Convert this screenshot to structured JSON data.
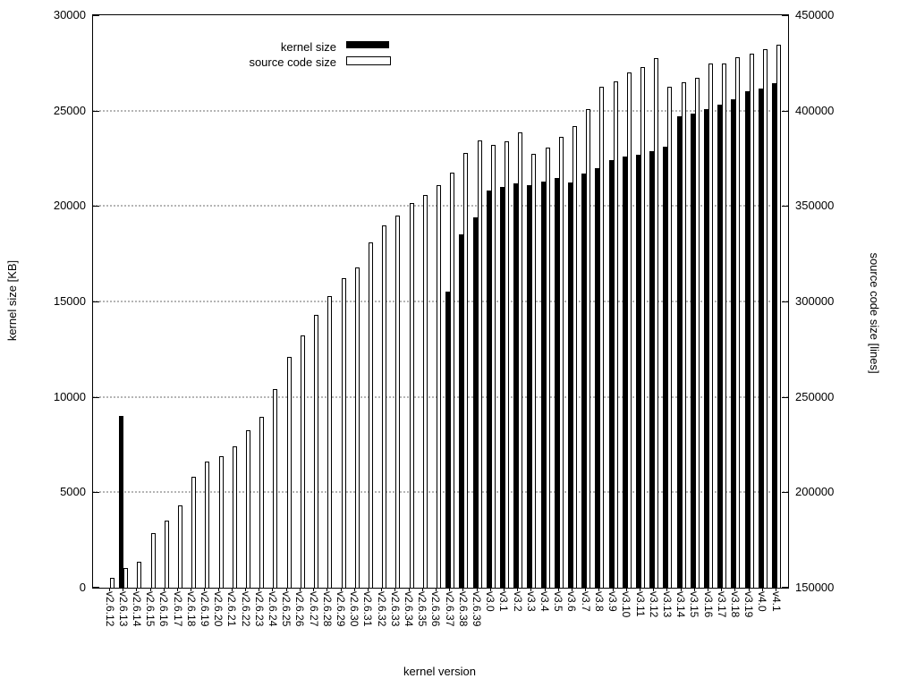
{
  "chart_data": {
    "type": "bar",
    "title": "",
    "xlabel": "kernel version",
    "ylabel_left": "kernel size [KB]",
    "ylabel_right": "source code size [lines]",
    "grid": "horizontal dotted",
    "legend_position": "top-left-inside",
    "legend": [
      {
        "label": "kernel size",
        "style": "filled-black"
      },
      {
        "label": "source code size",
        "style": "white-outline"
      }
    ],
    "left_axis": {
      "min": 0,
      "max": 30000,
      "ticks": [
        0,
        5000,
        10000,
        15000,
        20000,
        25000,
        30000
      ]
    },
    "right_axis": {
      "min": 150000,
      "max": 450000,
      "ticks": [
        150000,
        200000,
        250000,
        300000,
        350000,
        400000,
        450000
      ]
    },
    "categories": [
      "v2.6.12",
      "v2.6.13",
      "v2.6.14",
      "v2.6.15",
      "v2.6.16",
      "v2.6.17",
      "v2.6.18",
      "v2.6.19",
      "v2.6.20",
      "v2.6.21",
      "v2.6.22",
      "v2.6.23",
      "v2.6.24",
      "v2.6.25",
      "v2.6.26",
      "v2.6.27",
      "v2.6.28",
      "v2.6.29",
      "v2.6.30",
      "v2.6.31",
      "v2.6.32",
      "v2.6.33",
      "v2.6.34",
      "v2.6.35",
      "v2.6.36",
      "v2.6.37",
      "v2.6.38",
      "v2.6.39",
      "v3.0",
      "v3.1",
      "v3.2",
      "v3.3",
      "v3.4",
      "v3.5",
      "v3.6",
      "v3.7",
      "v3.8",
      "v3.9",
      "v3.10",
      "v3.11",
      "v3.12",
      "v3.13",
      "v3.14",
      "v3.15",
      "v3.16",
      "v3.17",
      "v3.18",
      "v3.19",
      "v4.0",
      "v4.1"
    ],
    "series": [
      {
        "name": "kernel size",
        "axis": "left",
        "unit": "KB",
        "values": [
          0,
          9000,
          0,
          0,
          0,
          0,
          0,
          0,
          0,
          0,
          0,
          0,
          0,
          0,
          0,
          0,
          0,
          0,
          0,
          0,
          0,
          0,
          0,
          0,
          0,
          15500,
          18500,
          19400,
          20800,
          21000,
          21200,
          21100,
          21300,
          21450,
          21250,
          21700,
          22000,
          22400,
          22600,
          22700,
          22900,
          23100,
          24700,
          24850,
          25100,
          25300,
          25600,
          26000,
          26150,
          26450
        ]
      },
      {
        "name": "source code size",
        "axis": "right",
        "unit": "lines",
        "values": [
          155000,
          160500,
          163500,
          178500,
          185000,
          193000,
          208000,
          216000,
          219000,
          224000,
          232500,
          239500,
          254000,
          271000,
          282000,
          293000,
          303000,
          312000,
          318000,
          331000,
          340000,
          345000,
          351500,
          356000,
          361000,
          367500,
          378000,
          384500,
          382000,
          384000,
          388500,
          377500,
          380500,
          386500,
          392000,
          401000,
          412500,
          415500,
          420000,
          423000,
          427500,
          412500,
          415000,
          417000,
          424500,
          424500,
          428000,
          430000,
          432000,
          434500
        ]
      }
    ]
  }
}
